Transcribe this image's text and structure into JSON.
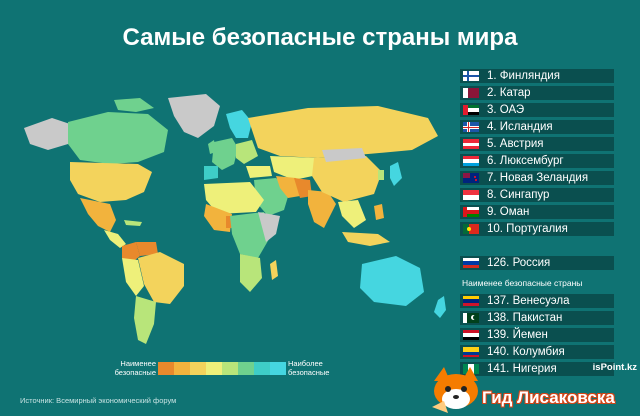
{
  "title": "Самые безопасные страны мира",
  "top_countries": [
    {
      "label": "1. Финляндия",
      "flag": "finland-flag-icon"
    },
    {
      "label": "2. Катар",
      "flag": "qatar-flag-icon"
    },
    {
      "label": "3. ОАЭ",
      "flag": "uae-flag-icon"
    },
    {
      "label": "4. Исландия",
      "flag": "iceland-flag-icon"
    },
    {
      "label": "5. Австрия",
      "flag": "austria-flag-icon"
    },
    {
      "label": "6. Люксембург",
      "flag": "luxembourg-flag-icon"
    },
    {
      "label": "7. Новая Зеландия",
      "flag": "new-zealand-flag-icon"
    },
    {
      "label": "8. Сингапур",
      "flag": "singapore-flag-icon"
    },
    {
      "label": "9. Оман",
      "flag": "oman-flag-icon"
    },
    {
      "label": "10. Португалия",
      "flag": "portugal-flag-icon"
    }
  ],
  "russia": {
    "label": "126. Россия",
    "flag": "russia-flag-icon"
  },
  "least_safe_heading": "Наименее безопасные страны",
  "bottom_countries": [
    {
      "label": "137. Венесуэла",
      "flag": "venezuela-flag-icon"
    },
    {
      "label": "138. Пакистан",
      "flag": "pakistan-flag-icon"
    },
    {
      "label": "139. Йемен",
      "flag": "yemen-flag-icon"
    },
    {
      "label": "140. Колумбия",
      "flag": "colombia-flag-icon"
    },
    {
      "label": "141. Нигерия",
      "flag": "nigeria-flag-icon"
    }
  ],
  "legend": {
    "least_safe": "Наименее безопасные",
    "most_safe": "Наиболее безопасные",
    "scale_colors": [
      "#e8892c",
      "#f2b33d",
      "#f3d35c",
      "#eef07a",
      "#b8e57a",
      "#6fd18e",
      "#3ecdc7",
      "#45d6e0"
    ]
  },
  "source": "Источник: Всемирный экономический форум",
  "logo": {
    "site": "isPoint.kz",
    "name": "Гид Лисаковска"
  },
  "colors": {
    "background": "#0f7373",
    "row_background": "#0a4f4f",
    "no_data": "#c9c9c9"
  }
}
